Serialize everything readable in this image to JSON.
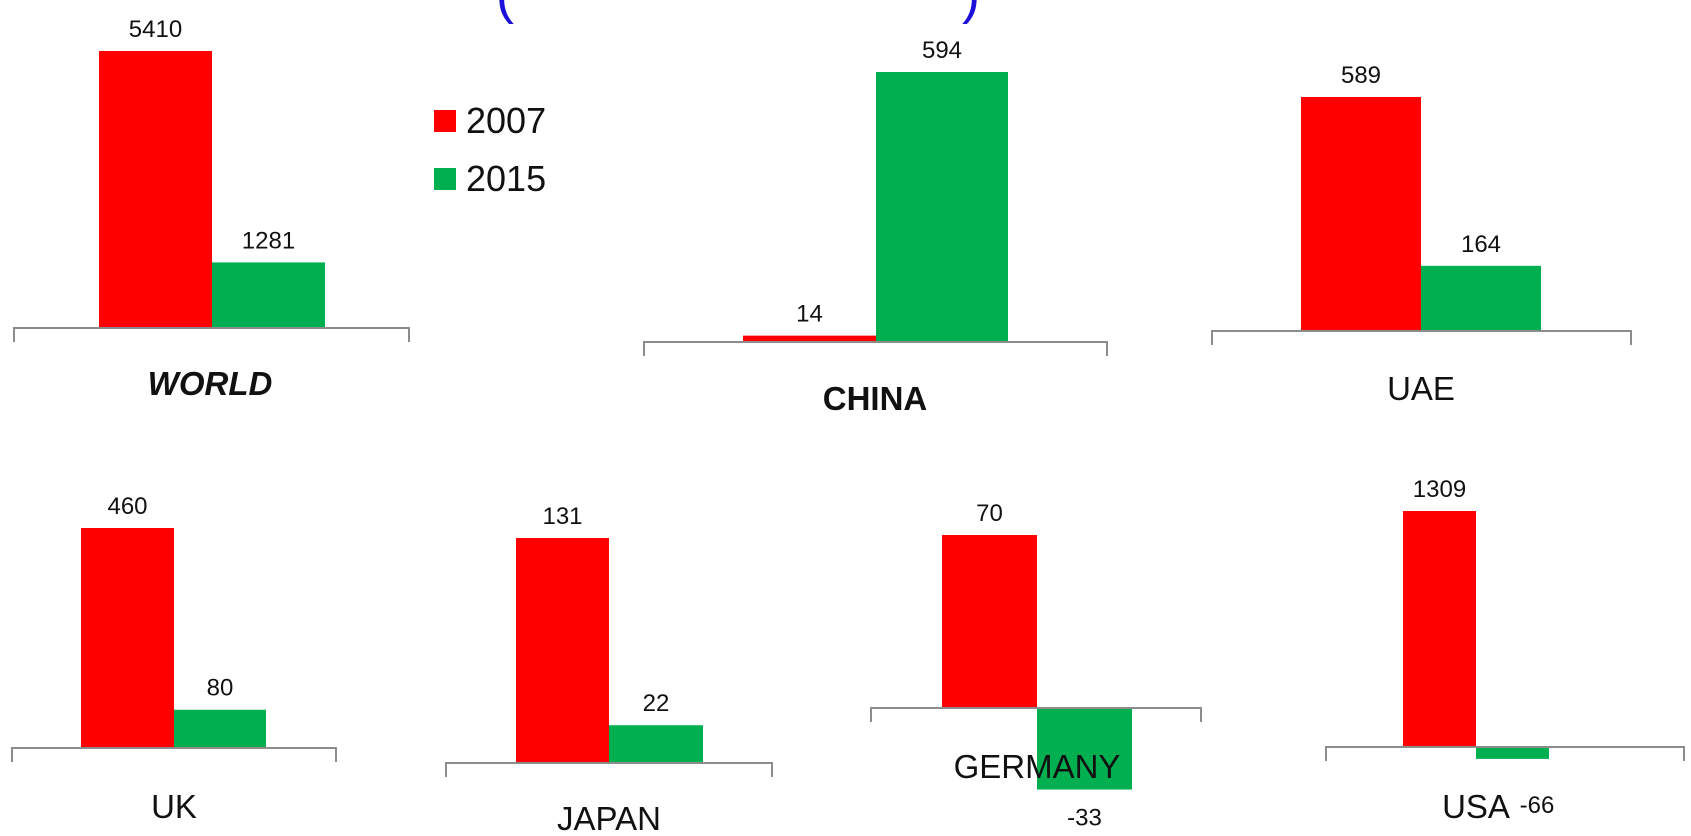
{
  "legend": [
    {
      "label": "2007",
      "color": "#ff0000"
    },
    {
      "label": "2015",
      "color": "#00b050"
    }
  ],
  "chart_data": [
    {
      "type": "bar",
      "title": "WORLD",
      "categories": [
        "WORLD"
      ],
      "series": [
        {
          "name": "2007",
          "values": [
            5410
          ]
        },
        {
          "name": "2015",
          "values": [
            1281
          ]
        }
      ]
    },
    {
      "type": "bar",
      "title": "CHINA",
      "categories": [
        "CHINA"
      ],
      "series": [
        {
          "name": "2007",
          "values": [
            14
          ]
        },
        {
          "name": "2015",
          "values": [
            594
          ]
        }
      ]
    },
    {
      "type": "bar",
      "title": "UAE",
      "categories": [
        "UAE"
      ],
      "series": [
        {
          "name": "2007",
          "values": [
            589
          ]
        },
        {
          "name": "2015",
          "values": [
            164
          ]
        }
      ]
    },
    {
      "type": "bar",
      "title": "UK",
      "categories": [
        "UK"
      ],
      "series": [
        {
          "name": "2007",
          "values": [
            460
          ]
        },
        {
          "name": "2015",
          "values": [
            80
          ]
        }
      ]
    },
    {
      "type": "bar",
      "title": "JAPAN",
      "categories": [
        "JAPAN"
      ],
      "series": [
        {
          "name": "2007",
          "values": [
            131
          ]
        },
        {
          "name": "2015",
          "values": [
            22
          ]
        }
      ]
    },
    {
      "type": "bar",
      "title": "GERMANY",
      "categories": [
        "GERMANY"
      ],
      "series": [
        {
          "name": "2007",
          "values": [
            70
          ]
        },
        {
          "name": "2015",
          "values": [
            -33
          ]
        }
      ]
    },
    {
      "type": "bar",
      "title": "USA",
      "categories": [
        "USA"
      ],
      "series": [
        {
          "name": "2007",
          "values": [
            1309
          ]
        },
        {
          "name": "2015",
          "values": [
            -66
          ]
        }
      ]
    }
  ]
}
